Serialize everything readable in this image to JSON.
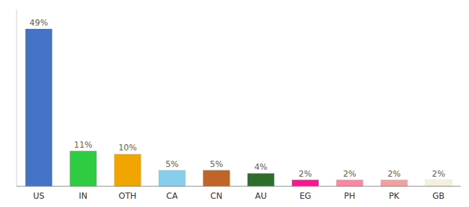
{
  "chart_data": {
    "type": "bar",
    "categories": [
      "US",
      "IN",
      "OTH",
      "CA",
      "CN",
      "AU",
      "EG",
      "PH",
      "PK",
      "GB"
    ],
    "values": [
      49,
      11,
      10,
      5,
      5,
      4,
      2,
      2,
      2,
      2
    ],
    "value_labels": [
      "49%",
      "11%",
      "10%",
      "5%",
      "5%",
      "4%",
      "2%",
      "2%",
      "2%",
      "2%"
    ],
    "colors": [
      "#4472c4",
      "#2ecc40",
      "#f0a500",
      "#87ceeb",
      "#c0652a",
      "#2d6e2d",
      "#ff1493",
      "#ff85a1",
      "#f4a0a0",
      "#f5f0dc"
    ],
    "ylim": [
      0,
      55
    ],
    "data_labels": true,
    "tick_labels": "x",
    "grid": false
  }
}
